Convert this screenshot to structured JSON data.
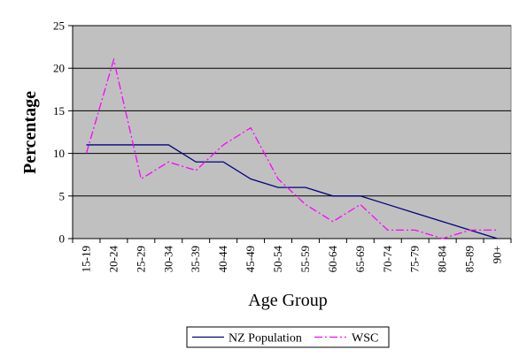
{
  "chart_data": {
    "type": "line",
    "title": "",
    "xlabel": "Age Group",
    "ylabel": "Percentage",
    "ylim": [
      0,
      25
    ],
    "yticks": [
      0,
      5,
      10,
      15,
      20,
      25
    ],
    "grid": true,
    "legend_position": "bottom",
    "plot_background": "#c0c0c0",
    "categories": [
      "15-19",
      "20-24",
      "25-29",
      "30-34",
      "35-39",
      "40-44",
      "45-49",
      "50-54",
      "55-59",
      "60-64",
      "65-69",
      "70-74",
      "75-79",
      "80-84",
      "85-89",
      "90+"
    ],
    "series": [
      {
        "name": "NZ Population",
        "color": "#000080",
        "line_style": "solid",
        "values": [
          11,
          11,
          11,
          11,
          9,
          9,
          7,
          6,
          6,
          5,
          5,
          4,
          3,
          2,
          1,
          0
        ]
      },
      {
        "name": "WSC",
        "color": "#ff00ff",
        "line_style": "dash-dot",
        "values": [
          10,
          21,
          7,
          9,
          8,
          11,
          13,
          7,
          4,
          2,
          4,
          1,
          1,
          0,
          1,
          1
        ]
      }
    ]
  }
}
